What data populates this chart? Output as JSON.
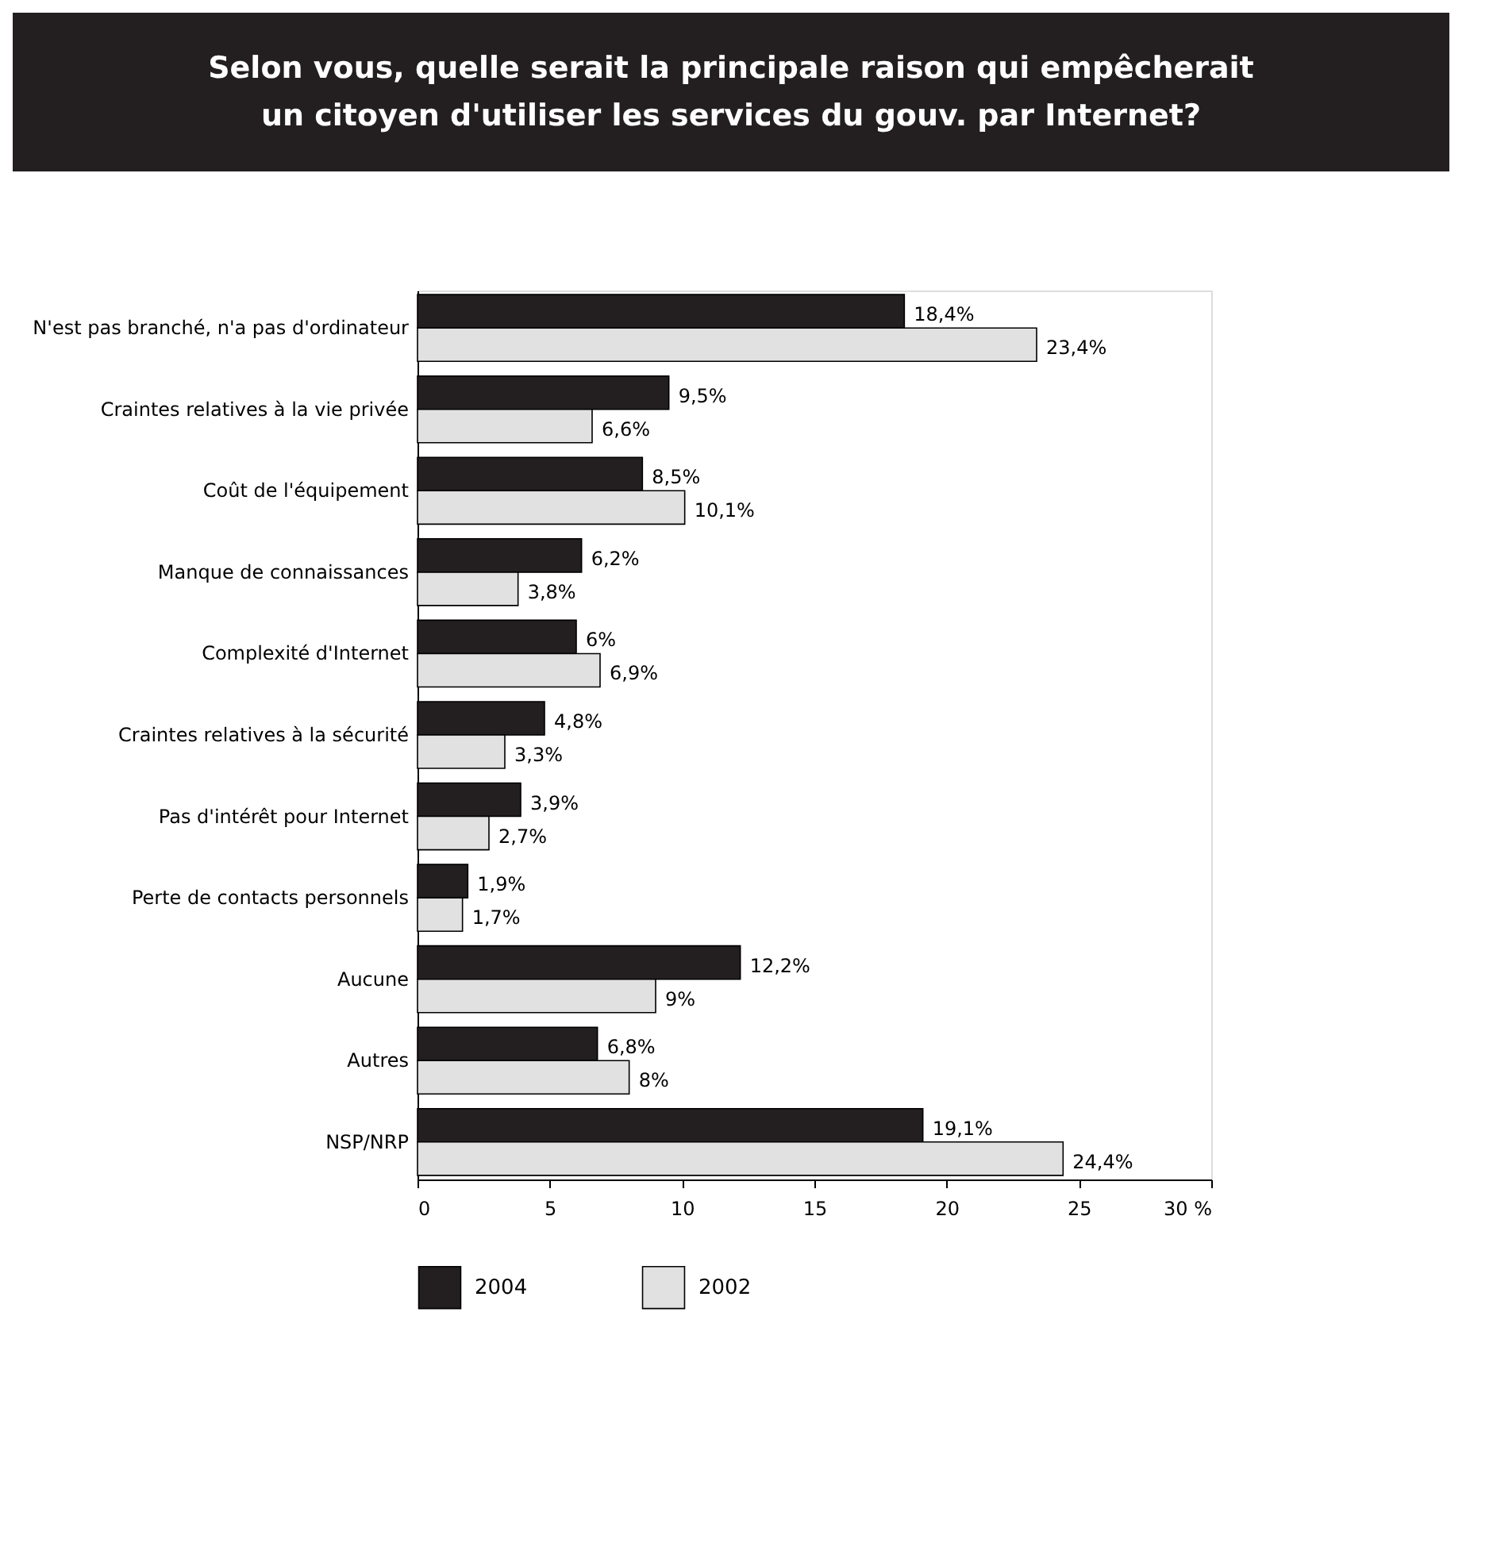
{
  "chart_data": {
    "type": "bar",
    "orientation": "horizontal",
    "title": "Selon vous, quelle serait la principale raison qui empêcherait un citoyen d'utiliser les services du gouv. par Internet?",
    "categories": [
      "N'est pas branché, n'a pas d'ordinateur",
      "Craintes relatives à la vie privée",
      "Coût de l'équipement",
      "Manque de connaissances",
      "Complexité d'Internet",
      "Craintes relatives à la sécurité",
      "Pas d'intérêt pour Internet",
      "Perte de contacts personnels",
      "Aucune",
      "Autres",
      "NSP/NRP"
    ],
    "series": [
      {
        "name": "2004",
        "color": "#231f20",
        "values": [
          18.4,
          9.5,
          8.5,
          6.2,
          6,
          4.8,
          3.9,
          1.9,
          12.2,
          6.8,
          19.1
        ],
        "value_labels": [
          "18,4%",
          "9,5%",
          "8,5%",
          "6,2%",
          "6%",
          "4,8%",
          "3,9%",
          "1,9%",
          "12,2%",
          "6,8%",
          "19,1%"
        ]
      },
      {
        "name": "2002",
        "color": "#e1e1e2",
        "values": [
          23.4,
          6.6,
          10.1,
          3.8,
          6.9,
          3.3,
          2.7,
          1.7,
          9,
          8,
          24.4
        ],
        "value_labels": [
          "23,4%",
          "6,6%",
          "10,1%",
          "3,8%",
          "6,9%",
          "3,3%",
          "2,7%",
          "1,7%",
          "9%",
          "8%",
          "24,4%"
        ]
      }
    ],
    "xlim": [
      0,
      30
    ],
    "xticks": [
      0,
      5,
      10,
      15,
      20,
      25,
      {
        "value": 30,
        "label": "30 %"
      }
    ],
    "grid": false,
    "legend": "bottom"
  }
}
